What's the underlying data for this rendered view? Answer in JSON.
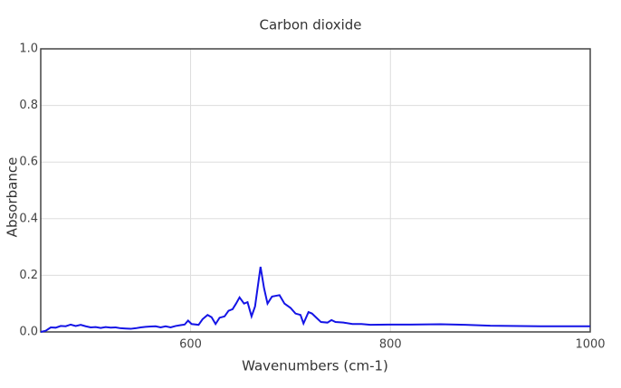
{
  "chart_data": {
    "type": "line",
    "title": "Carbon dioxide",
    "x_label": "Wavenumbers (cm-1)",
    "y_label": "Absorbance",
    "x": [
      450,
      455,
      460,
      465,
      470,
      475,
      480,
      485,
      490,
      495,
      500,
      505,
      510,
      515,
      520,
      525,
      530,
      535,
      540,
      545,
      550,
      555,
      560,
      565,
      570,
      575,
      580,
      585,
      590,
      594,
      597.5,
      601,
      608,
      612,
      617,
      621,
      625,
      629,
      634,
      638,
      642,
      645.5,
      649,
      653.5,
      657,
      661,
      664.5,
      670,
      673.5,
      677,
      681.5,
      689,
      694,
      700,
      705,
      710,
      713,
      718,
      721.5,
      726,
      730.5,
      737,
      741,
      745,
      753,
      762,
      771,
      780,
      798,
      820,
      850,
      875,
      900,
      950,
      1000
    ],
    "series": [
      {
        "name": "Carbon dioxide",
        "color": "#1414e6",
        "values": [
          0.0,
          0.004,
          0.016,
          0.015,
          0.021,
          0.02,
          0.026,
          0.021,
          0.025,
          0.02,
          0.016,
          0.017,
          0.014,
          0.017,
          0.015,
          0.016,
          0.013,
          0.012,
          0.011,
          0.013,
          0.016,
          0.018,
          0.019,
          0.02,
          0.016,
          0.02,
          0.016,
          0.021,
          0.024,
          0.026,
          0.04,
          0.028,
          0.025,
          0.045,
          0.06,
          0.052,
          0.028,
          0.05,
          0.055,
          0.075,
          0.08,
          0.1,
          0.122,
          0.1,
          0.105,
          0.055,
          0.09,
          0.23,
          0.155,
          0.1,
          0.125,
          0.13,
          0.1,
          0.085,
          0.065,
          0.06,
          0.03,
          0.07,
          0.065,
          0.05,
          0.035,
          0.033,
          0.042,
          0.035,
          0.033,
          0.028,
          0.028,
          0.025,
          0.026,
          0.026,
          0.027,
          0.025,
          0.022,
          0.02,
          0.02
        ]
      }
    ],
    "xlim": [
      450,
      1000
    ],
    "ylim": [
      0,
      1
    ],
    "xticks": [
      600,
      800,
      1000
    ],
    "yticks": [
      {
        "value": 0,
        "label": "0.0"
      },
      0.2,
      0.4,
      0.6,
      0.8,
      {
        "value": 1,
        "label": "1.0"
      }
    ],
    "grid": true
  }
}
